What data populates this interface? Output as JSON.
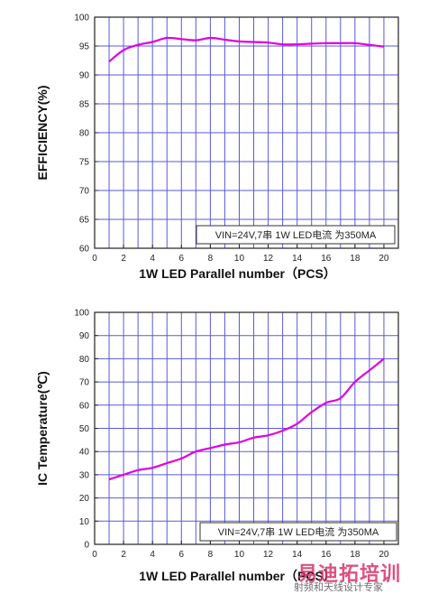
{
  "chart_data": [
    {
      "type": "line",
      "title": "",
      "xlabel": "1W  LED Parallel number（PCS）",
      "ylabel": "EFFICIENCY(%)",
      "xlim": [
        0,
        21
      ],
      "ylim": [
        60,
        100
      ],
      "xticks": [
        0,
        2,
        4,
        6,
        8,
        10,
        12,
        14,
        16,
        18,
        20
      ],
      "yticks": [
        60,
        65,
        70,
        75,
        80,
        85,
        90,
        95,
        100
      ],
      "grid": true,
      "annotation": "VIN=24V,7串 1W LED电流 为350MA",
      "color": "#e000e0",
      "series": [
        {
          "x": [
            1,
            2,
            3,
            4,
            5,
            6,
            7,
            8,
            9,
            10,
            11,
            12,
            13,
            14,
            15,
            16,
            17,
            18,
            19,
            20
          ],
          "values": [
            92.3,
            94.3,
            95.2,
            95.7,
            96.4,
            96.2,
            96.0,
            96.4,
            96.1,
            95.8,
            95.7,
            95.6,
            95.3,
            95.3,
            95.4,
            95.5,
            95.5,
            95.5,
            95.2,
            94.9
          ]
        }
      ]
    },
    {
      "type": "line",
      "title": "",
      "xlabel": "1W  LED Parallel number（PCS）",
      "ylabel": "IC Temperature(℃)",
      "xlim": [
        0,
        21
      ],
      "ylim": [
        0,
        100
      ],
      "xticks": [
        0,
        2,
        4,
        6,
        8,
        10,
        12,
        14,
        16,
        18,
        20
      ],
      "yticks": [
        0,
        10,
        20,
        30,
        40,
        50,
        60,
        70,
        80,
        90,
        100
      ],
      "grid": true,
      "annotation": "VIN=24V,7串 1W LED电流 为350MA",
      "color": "#e000e0",
      "series": [
        {
          "x": [
            1,
            2,
            3,
            4,
            5,
            6,
            7,
            8,
            9,
            10,
            11,
            12,
            13,
            14,
            15,
            16,
            17,
            18,
            19,
            20
          ],
          "values": [
            28,
            30,
            32,
            33,
            35,
            37,
            40,
            41.5,
            43,
            44,
            46,
            47,
            49,
            52,
            57,
            61,
            63,
            70,
            75,
            80
          ]
        }
      ]
    }
  ],
  "watermark": {
    "big": "易迪拓培训",
    "small": "射频和天线设计专家"
  }
}
